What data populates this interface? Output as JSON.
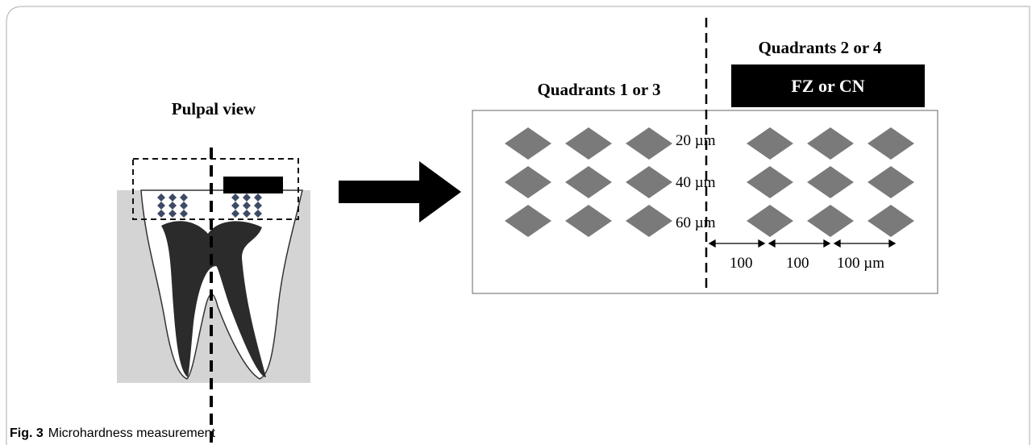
{
  "figure": {
    "left": {
      "title": "Pulpal view"
    },
    "right": {
      "quadrants_left": "Quadrants 1 or 3",
      "quadrants_right": "Quadrants 2 or 4",
      "zone_label": "FZ or CN",
      "depths": [
        "20 µm",
        "40 µm",
        "60 µm"
      ],
      "spacings": [
        "100",
        "100",
        "100 µm"
      ]
    },
    "caption": {
      "label": "Fig. 3",
      "text": "Microhardness measurement"
    }
  }
}
